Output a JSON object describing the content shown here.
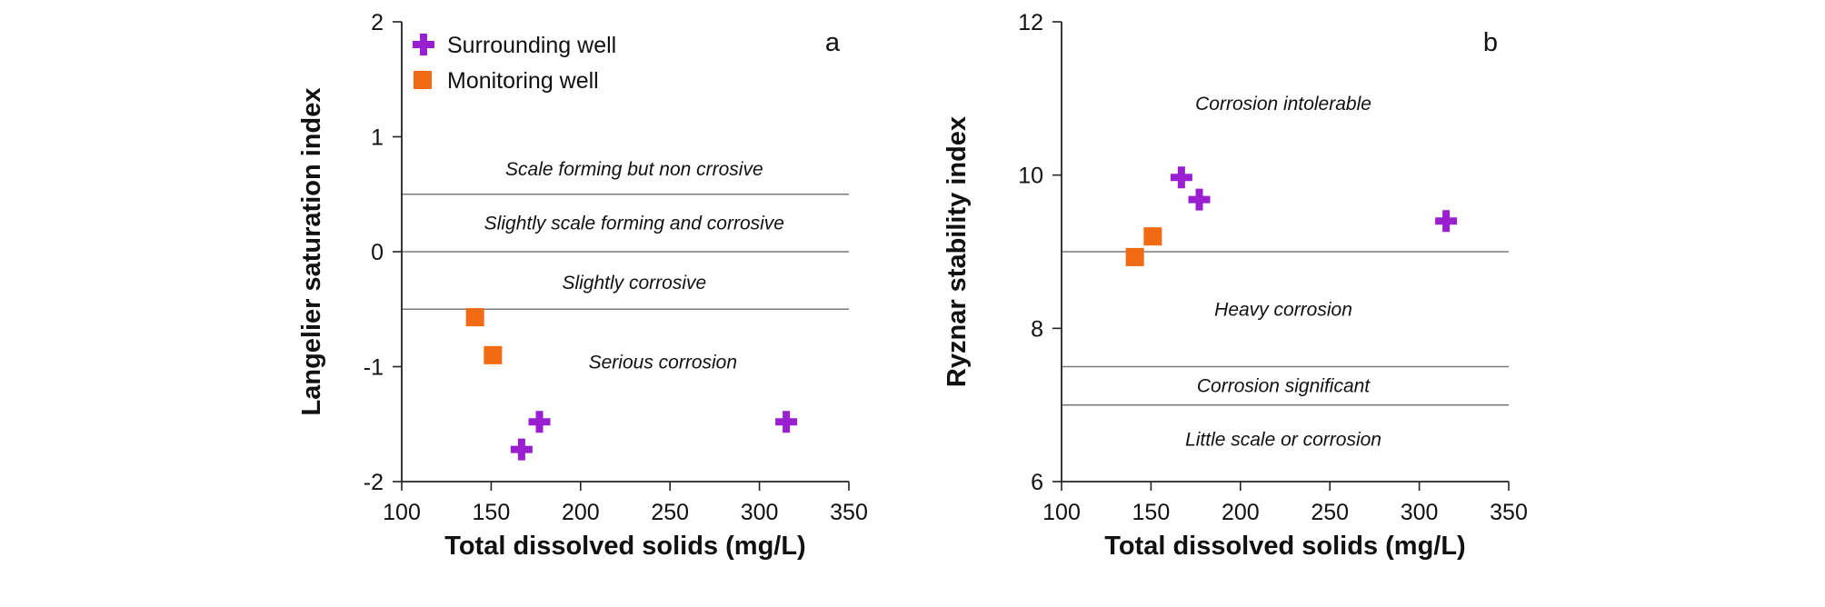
{
  "chart_data": [
    {
      "type": "scatter",
      "panel_label": "a",
      "xlabel": "Total dissolved solids (mg/L)",
      "ylabel": "Langelier saturation index",
      "xlim": [
        100,
        350
      ],
      "ylim": [
        -2,
        2
      ],
      "x_ticks": [
        "100",
        "150",
        "200",
        "250",
        "300",
        "350"
      ],
      "y_ticks": [
        "-2",
        "-1",
        "0",
        "1",
        "2"
      ],
      "thresholds": [
        0.5,
        0,
        -0.5
      ],
      "zones": [
        {
          "label": "Scale forming but non crrosive",
          "x": 230,
          "y": 0.72
        },
        {
          "label": "Slightly scale forming and corrosive",
          "x": 230,
          "y": 0.25
        },
        {
          "label": "Slightly corrosive",
          "x": 230,
          "y": -0.27
        },
        {
          "label": "Serious corrosion",
          "x": 246,
          "y": -0.96
        }
      ],
      "legend": {
        "position": "top-left",
        "entries": [
          {
            "label": "Surrounding well",
            "marker": "plus",
            "color": "#9a1fd0"
          },
          {
            "label": "Monitoring well",
            "marker": "square",
            "color": "#f26b12"
          }
        ]
      },
      "series": [
        {
          "name": "Surrounding well",
          "marker": "plus",
          "color": "#9a1fd0",
          "points": [
            [
              167,
              -1.72
            ],
            [
              177,
              -1.48
            ],
            [
              315,
              -1.48
            ]
          ]
        },
        {
          "name": "Monitoring well",
          "marker": "square",
          "color": "#f26b12",
          "points": [
            [
              141,
              -0.57
            ],
            [
              151,
              -0.9
            ]
          ]
        }
      ]
    },
    {
      "type": "scatter",
      "panel_label": "b",
      "xlabel": "Total dissolved solids (mg/L)",
      "ylabel": "Ryznar stability index",
      "xlim": [
        100,
        350
      ],
      "ylim": [
        6,
        12
      ],
      "x_ticks": [
        "100",
        "150",
        "200",
        "250",
        "300",
        "350"
      ],
      "y_ticks": [
        "6",
        "8",
        "10",
        "12"
      ],
      "thresholds": [
        9,
        7.5,
        7
      ],
      "zones": [
        {
          "label": "Corrosion intolerable",
          "x": 224,
          "y": 10.93
        },
        {
          "label": "Heavy corrosion",
          "x": 224,
          "y": 8.25
        },
        {
          "label": "Corrosion significant",
          "x": 224,
          "y": 7.25
        },
        {
          "label": "Little scale or corrosion",
          "x": 224,
          "y": 6.55
        }
      ],
      "legend": null,
      "series": [
        {
          "name": "Surrounding well",
          "marker": "plus",
          "color": "#9a1fd0",
          "points": [
            [
              167,
              9.97
            ],
            [
              177,
              9.68
            ],
            [
              315,
              9.4
            ]
          ]
        },
        {
          "name": "Monitoring well",
          "marker": "square",
          "color": "#f26b12",
          "points": [
            [
              141,
              8.93
            ],
            [
              151,
              9.2
            ]
          ]
        }
      ]
    }
  ]
}
